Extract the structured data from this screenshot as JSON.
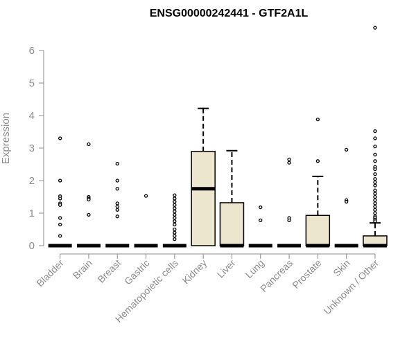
{
  "chart_data": {
    "type": "box",
    "title": "ENSG00000242441 - GTF2A1L",
    "ylabel": "Expression",
    "xlabel": "",
    "ylim": [
      0,
      6.75
    ],
    "yticks": [
      0,
      1,
      2,
      3,
      4,
      5,
      6
    ],
    "box_fill": "#ede6cf",
    "categories": [
      "Bladder",
      "Brain",
      "Breast",
      "Gastric",
      "Hematopoietic cells",
      "Kidney",
      "Liver",
      "Lung",
      "Pancreas",
      "Prostate",
      "Skin",
      "Unknown / Other"
    ],
    "boxes": [
      {
        "q1": 0,
        "median": 0,
        "q3": 0,
        "whisker_low": 0,
        "whisker_high": 0,
        "outliers": [
          3.3,
          2.0,
          1.52,
          1.45,
          1.3,
          1.25,
          0.85,
          0.65,
          0.3
        ]
      },
      {
        "q1": 0,
        "median": 0,
        "q3": 0,
        "whisker_low": 0,
        "whisker_high": 0,
        "outliers": [
          3.12,
          1.5,
          1.45,
          1.42,
          0.95
        ]
      },
      {
        "q1": 0,
        "median": 0,
        "q3": 0,
        "whisker_low": 0,
        "whisker_high": 0,
        "outliers": [
          2.52,
          2.0,
          1.75,
          1.3,
          1.2,
          1.1,
          0.9
        ]
      },
      {
        "q1": 0,
        "median": 0,
        "q3": 0,
        "whisker_low": 0,
        "whisker_high": 0,
        "outliers": [
          1.53
        ]
      },
      {
        "q1": 0,
        "median": 0,
        "q3": 0,
        "whisker_low": 0,
        "whisker_high": 0,
        "outliers": [
          1.55,
          1.45,
          1.35,
          1.25,
          1.15,
          1.05,
          0.95,
          0.85,
          0.75,
          0.65,
          0.5,
          0.4,
          0.3,
          0.2
        ]
      },
      {
        "q1": 0,
        "median": 1.75,
        "q3": 2.9,
        "whisker_low": 0,
        "whisker_high": 4.22,
        "outliers": []
      },
      {
        "q1": 0,
        "median": 0,
        "q3": 1.32,
        "whisker_low": 0,
        "whisker_high": 2.92,
        "outliers": []
      },
      {
        "q1": 0,
        "median": 0,
        "q3": 0,
        "whisker_low": 0,
        "whisker_high": 0,
        "outliers": [
          1.18,
          0.78
        ]
      },
      {
        "q1": 0,
        "median": 0,
        "q3": 0,
        "whisker_low": 0,
        "whisker_high": 0,
        "outliers": [
          2.65,
          2.55,
          0.85,
          0.78
        ]
      },
      {
        "q1": 0,
        "median": 0,
        "q3": 0.93,
        "whisker_low": 0,
        "whisker_high": 2.13,
        "outliers": [
          3.88,
          2.6
        ]
      },
      {
        "q1": 0,
        "median": 0,
        "q3": 0,
        "whisker_low": 0,
        "whisker_high": 0,
        "outliers": [
          2.95,
          1.4,
          1.35
        ]
      },
      {
        "q1": 0,
        "median": 0,
        "q3": 0.3,
        "whisker_low": 0,
        "whisker_high": 0.7,
        "outliers": [
          6.7,
          3.52,
          3.3,
          3.05,
          2.8,
          2.6,
          2.42,
          2.35,
          2.2,
          2.05,
          1.95,
          1.85,
          1.7,
          1.6,
          1.5,
          1.4,
          1.3,
          1.2,
          1.1,
          1.0,
          0.9,
          0.85,
          0.8,
          0.75
        ]
      }
    ]
  }
}
